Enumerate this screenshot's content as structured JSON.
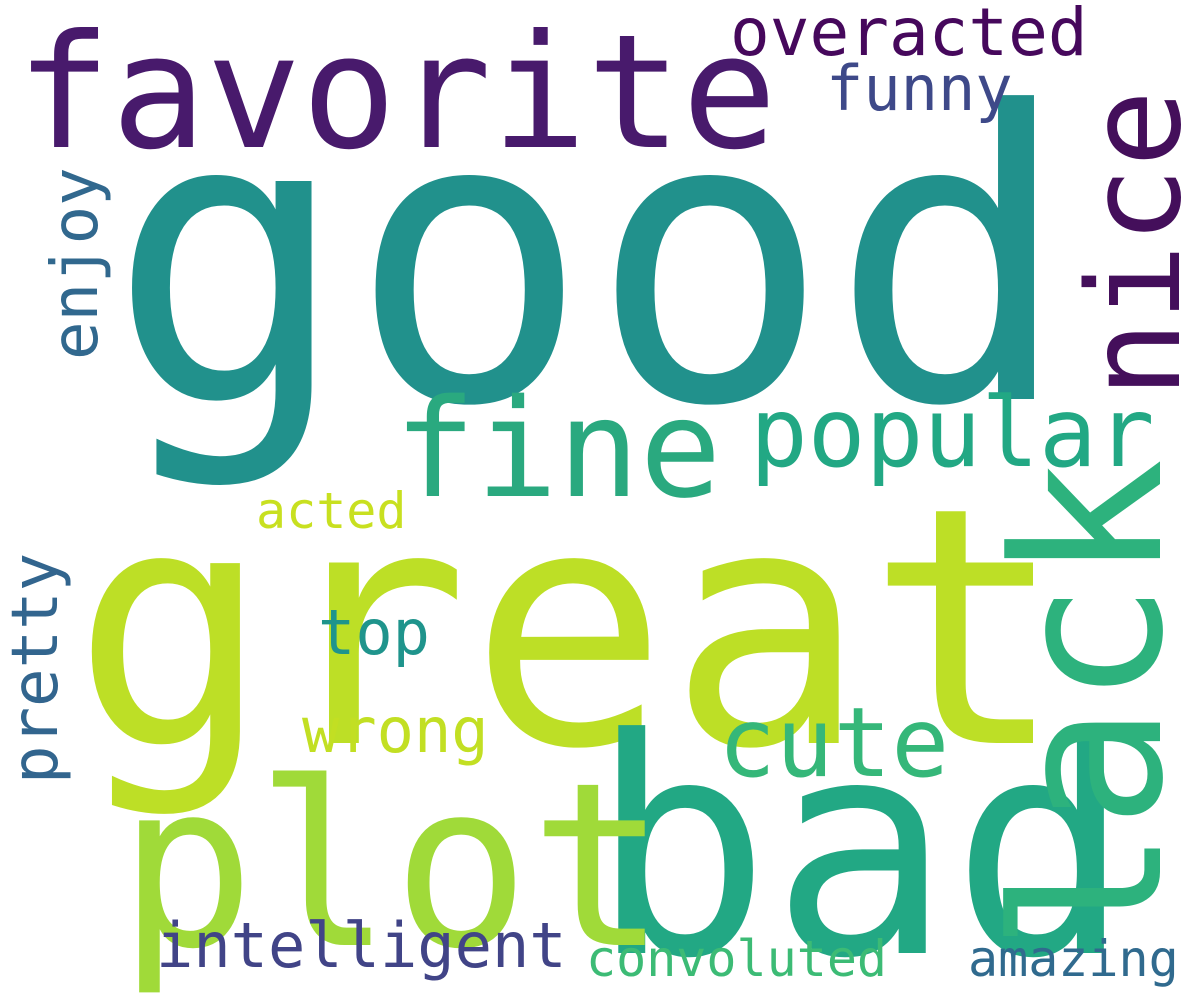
{
  "words": [
    {
      "id": "good",
      "text": "good",
      "color": "#21918c"
    },
    {
      "id": "great",
      "text": "great",
      "color": "#bddf26"
    },
    {
      "id": "bad",
      "text": "bad",
      "color": "#22a884"
    },
    {
      "id": "plot",
      "text": "plot",
      "color": "#a0da39"
    },
    {
      "id": "lack",
      "text": "lack",
      "color": "#2db27d"
    },
    {
      "id": "favorite",
      "text": "favorite",
      "color": "#481a6c"
    },
    {
      "id": "nice",
      "text": "nice",
      "color": "#440f5b"
    },
    {
      "id": "fine",
      "text": "fine",
      "color": "#2aa97f"
    },
    {
      "id": "popular",
      "text": "popular",
      "color": "#22a884"
    },
    {
      "id": "cute",
      "text": "cute",
      "color": "#35b779"
    },
    {
      "id": "overacted",
      "text": "overacted",
      "color": "#46085c"
    },
    {
      "id": "funny",
      "text": "funny",
      "color": "#3e4989"
    },
    {
      "id": "enjoy",
      "text": "enjoy",
      "color": "#31688e"
    },
    {
      "id": "acted",
      "text": "acted",
      "color": "#c8e020"
    },
    {
      "id": "top",
      "text": "top",
      "color": "#1f948c"
    },
    {
      "id": "wrong",
      "text": "wrong",
      "color": "#c2df23"
    },
    {
      "id": "pretty",
      "text": "pretty",
      "color": "#32658e"
    },
    {
      "id": "intelligent",
      "text": "intelligent",
      "color": "#414487"
    },
    {
      "id": "convoluted",
      "text": "convoluted",
      "color": "#3cbb75"
    },
    {
      "id": "amazing",
      "text": "amazing",
      "color": "#306a8e"
    }
  ]
}
